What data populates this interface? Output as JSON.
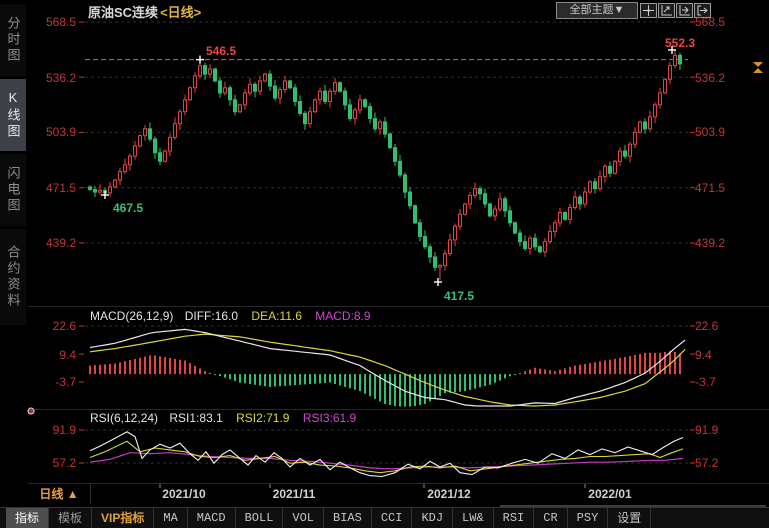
{
  "sidebar": {
    "tabs": [
      "分时图",
      "K线图",
      "闪电图",
      "合约资料"
    ],
    "active_index": 1
  },
  "header": {
    "title": "原油SC连续",
    "period_tag": "<日线>",
    "theme_button": "全部主题▼",
    "icon_names": [
      "crosshair-icon",
      "zoom-axis-icon",
      "pan-axis-icon",
      "exit-chart-icon"
    ]
  },
  "main_chart": {
    "y_axis": [
      "568.5",
      "536.2",
      "503.9",
      "471.5",
      "439.2"
    ]
  },
  "macd_panel": {
    "label": "MACD(26,12,9)",
    "diff_label": "DIFF:16.0",
    "dea_label": "DEA:11.6",
    "macd_label": "MACD:8.9",
    "y_axis": [
      "22.6",
      "9.4",
      "-3.7"
    ]
  },
  "rsi_panel": {
    "label": "RSI(6,12,24)",
    "rsi1_label": "RSI1:83.1",
    "rsi2_label": "RSI2:71.9",
    "rsi3_label": "RSI3:61.9",
    "y_axis": [
      "91.9",
      "57.2"
    ]
  },
  "timeline": {
    "period_label": "日线",
    "period_arrow": "▲",
    "dates": [
      "2021/10",
      "2021/11",
      "2021/12",
      "2022/01"
    ]
  },
  "toolbar": {
    "items": [
      "指标",
      "模板",
      "VIP指标",
      "MA",
      "MACD",
      "BOLL",
      "VOL",
      "BIAS",
      "CCI",
      "KDJ",
      "LW&",
      "RSI",
      "CR",
      "PSY",
      "设置"
    ]
  },
  "colors": {
    "up": "#e24444",
    "down": "#2fbf71",
    "axis_red": "#c03636",
    "grid": "#2e2e2e",
    "high_line_orange": "#b97a28",
    "dea_yellow": "#d8d832",
    "macd_magenta": "#d245d2",
    "diff_white": "#e8e8e8",
    "rsi3_magenta": "#c43cc4",
    "accent_orange": "#e8a33d"
  },
  "chart_data": {
    "type": "candlestick+macd+rsi",
    "symbol": "原油SC连续",
    "period": "日线",
    "x_dates": [
      "2021/10",
      "2021/11",
      "2021/12",
      "2022/01"
    ],
    "y_ticks": [
      568.5,
      536.2,
      503.9,
      471.5,
      439.2
    ],
    "high_ref_line": 546.5,
    "extremes": {
      "high_oct": 546.5,
      "high_jan": 552.3,
      "low_sep": 467.5,
      "low_dec": 417.5
    },
    "candles": {
      "first_open": 472,
      "closes": [
        470.5,
        469,
        470,
        468.5,
        472,
        476,
        481,
        485,
        490,
        496,
        502,
        506,
        500,
        492,
        487,
        493,
        501,
        509,
        516,
        523,
        530,
        537,
        543,
        538,
        541,
        534,
        527,
        530,
        523,
        516,
        520,
        527,
        532,
        528,
        534,
        538,
        531,
        524,
        529,
        534,
        530,
        522,
        515,
        509,
        516,
        523,
        528,
        522,
        528,
        533,
        528,
        520,
        512,
        517,
        523,
        519,
        512,
        506,
        510,
        503,
        495,
        487,
        479,
        469,
        461,
        451,
        443,
        437,
        431,
        425,
        426,
        433,
        441,
        449,
        456,
        462,
        467,
        471,
        468,
        462,
        455,
        459,
        465,
        458,
        451,
        445,
        440,
        436,
        442,
        437,
        434,
        440,
        446,
        451,
        457,
        453,
        460,
        466,
        462,
        469,
        475,
        471,
        478,
        484,
        480,
        487,
        493,
        490,
        497,
        504,
        510,
        506,
        513,
        520,
        527,
        535,
        543,
        549,
        544
      ],
      "special_points": {
        "3": {
          "low": 467.5
        },
        "22": {
          "high": 546.5
        },
        "70": {
          "low": 417.5
        },
        "117": {
          "high": 552.3
        }
      }
    },
    "macd": {
      "params": [
        26,
        12,
        9
      ],
      "diff": 16.0,
      "dea": 11.6,
      "macd": 8.9,
      "y_ticks": [
        22.6,
        9.4,
        -3.7
      ],
      "diff_points": [
        [
          90,
          12.5
        ],
        [
          115,
          14.5
        ],
        [
          152,
          19.5
        ],
        [
          185,
          21
        ],
        [
          205,
          19.5
        ],
        [
          240,
          15.5
        ],
        [
          270,
          12
        ],
        [
          300,
          10.5
        ],
        [
          330,
          9
        ],
        [
          360,
          4
        ],
        [
          385,
          -3
        ],
        [
          405,
          -8
        ],
        [
          425,
          -11
        ],
        [
          445,
          -12
        ],
        [
          465,
          -14.5
        ],
        [
          490,
          -15.5
        ],
        [
          510,
          -15
        ],
        [
          535,
          -13.5
        ],
        [
          555,
          -13.8
        ],
        [
          575,
          -11
        ],
        [
          600,
          -8
        ],
        [
          625,
          -4
        ],
        [
          645,
          0.5
        ],
        [
          660,
          6
        ],
        [
          672,
          11
        ],
        [
          685,
          16
        ]
      ],
      "dea_points": [
        [
          90,
          10.5
        ],
        [
          115,
          12
        ],
        [
          152,
          15
        ],
        [
          185,
          17.8
        ],
        [
          205,
          18.8
        ],
        [
          240,
          17.5
        ],
        [
          270,
          15
        ],
        [
          300,
          13
        ],
        [
          330,
          11
        ],
        [
          360,
          8
        ],
        [
          385,
          4
        ],
        [
          405,
          0
        ],
        [
          425,
          -4
        ],
        [
          445,
          -7.5
        ],
        [
          465,
          -10.5
        ],
        [
          490,
          -13
        ],
        [
          510,
          -14.5
        ],
        [
          535,
          -15
        ],
        [
          555,
          -14.5
        ],
        [
          575,
          -13
        ],
        [
          600,
          -11
        ],
        [
          625,
          -8
        ],
        [
          645,
          -4.5
        ],
        [
          660,
          1
        ],
        [
          672,
          5.5
        ],
        [
          685,
          11.6
        ]
      ]
    },
    "rsi": {
      "params": [
        6,
        12,
        24
      ],
      "rsi1": 83.1,
      "rsi2": 71.9,
      "rsi3": 61.9,
      "y_ticks": [
        91.9,
        57.2
      ],
      "rsi1_points": [
        [
          90,
          70
        ],
        [
          100,
          75
        ],
        [
          113,
          82
        ],
        [
          127,
          90
        ],
        [
          135,
          85
        ],
        [
          142,
          62
        ],
        [
          150,
          71
        ],
        [
          160,
          77
        ],
        [
          170,
          73
        ],
        [
          180,
          78
        ],
        [
          190,
          67
        ],
        [
          198,
          60
        ],
        [
          206,
          69
        ],
        [
          214,
          57
        ],
        [
          222,
          66
        ],
        [
          230,
          71
        ],
        [
          240,
          62
        ],
        [
          248,
          55
        ],
        [
          256,
          65
        ],
        [
          265,
          58
        ],
        [
          274,
          68
        ],
        [
          282,
          62
        ],
        [
          290,
          53
        ],
        [
          300,
          62
        ],
        [
          310,
          55
        ],
        [
          320,
          61
        ],
        [
          330,
          50
        ],
        [
          340,
          58
        ],
        [
          350,
          52
        ],
        [
          360,
          47
        ],
        [
          370,
          44
        ],
        [
          382,
          43
        ],
        [
          395,
          47
        ],
        [
          408,
          56
        ],
        [
          420,
          51
        ],
        [
          430,
          59
        ],
        [
          440,
          53
        ],
        [
          450,
          57
        ],
        [
          460,
          47
        ],
        [
          472,
          45
        ],
        [
          485,
          53
        ],
        [
          498,
          52
        ],
        [
          512,
          57
        ],
        [
          525,
          61
        ],
        [
          538,
          57
        ],
        [
          552,
          67
        ],
        [
          565,
          62
        ],
        [
          578,
          71
        ],
        [
          590,
          66
        ],
        [
          602,
          72
        ],
        [
          615,
          68
        ],
        [
          628,
          74
        ],
        [
          640,
          70
        ],
        [
          652,
          66
        ],
        [
          664,
          74
        ],
        [
          674,
          80
        ],
        [
          683,
          84
        ]
      ],
      "rsi2_points": [
        [
          90,
          63
        ],
        [
          105,
          69
        ],
        [
          127,
          80
        ],
        [
          140,
          69
        ],
        [
          155,
          73
        ],
        [
          170,
          71
        ],
        [
          185,
          69
        ],
        [
          200,
          64
        ],
        [
          215,
          63
        ],
        [
          230,
          65
        ],
        [
          245,
          60
        ],
        [
          260,
          62
        ],
        [
          275,
          64
        ],
        [
          290,
          57
        ],
        [
          305,
          58
        ],
        [
          320,
          55
        ],
        [
          335,
          54
        ],
        [
          350,
          52
        ],
        [
          365,
          49
        ],
        [
          380,
          47
        ],
        [
          395,
          49
        ],
        [
          410,
          53
        ],
        [
          425,
          54
        ],
        [
          440,
          52
        ],
        [
          455,
          54
        ],
        [
          470,
          49
        ],
        [
          485,
          51
        ],
        [
          500,
          53
        ],
        [
          515,
          55
        ],
        [
          530,
          57
        ],
        [
          545,
          59
        ],
        [
          560,
          61
        ],
        [
          575,
          62
        ],
        [
          590,
          64
        ],
        [
          605,
          64
        ],
        [
          620,
          65
        ],
        [
          635,
          66
        ],
        [
          650,
          67
        ],
        [
          660,
          63
        ],
        [
          672,
          68
        ],
        [
          683,
          72
        ]
      ],
      "rsi3_points": [
        [
          90,
          58
        ],
        [
          110,
          61
        ],
        [
          130,
          68
        ],
        [
          150,
          67
        ],
        [
          170,
          68
        ],
        [
          190,
          66
        ],
        [
          210,
          64
        ],
        [
          230,
          63
        ],
        [
          250,
          62
        ],
        [
          270,
          62
        ],
        [
          290,
          60
        ],
        [
          310,
          59
        ],
        [
          330,
          57
        ],
        [
          350,
          55
        ],
        [
          370,
          52
        ],
        [
          390,
          51
        ],
        [
          410,
          52
        ],
        [
          430,
          53
        ],
        [
          450,
          53
        ],
        [
          470,
          52
        ],
        [
          490,
          53
        ],
        [
          510,
          54
        ],
        [
          530,
          55
        ],
        [
          550,
          56
        ],
        [
          570,
          57
        ],
        [
          590,
          58
        ],
        [
          610,
          58
        ],
        [
          630,
          59
        ],
        [
          650,
          60
        ],
        [
          665,
          60
        ],
        [
          683,
          62
        ]
      ]
    }
  }
}
